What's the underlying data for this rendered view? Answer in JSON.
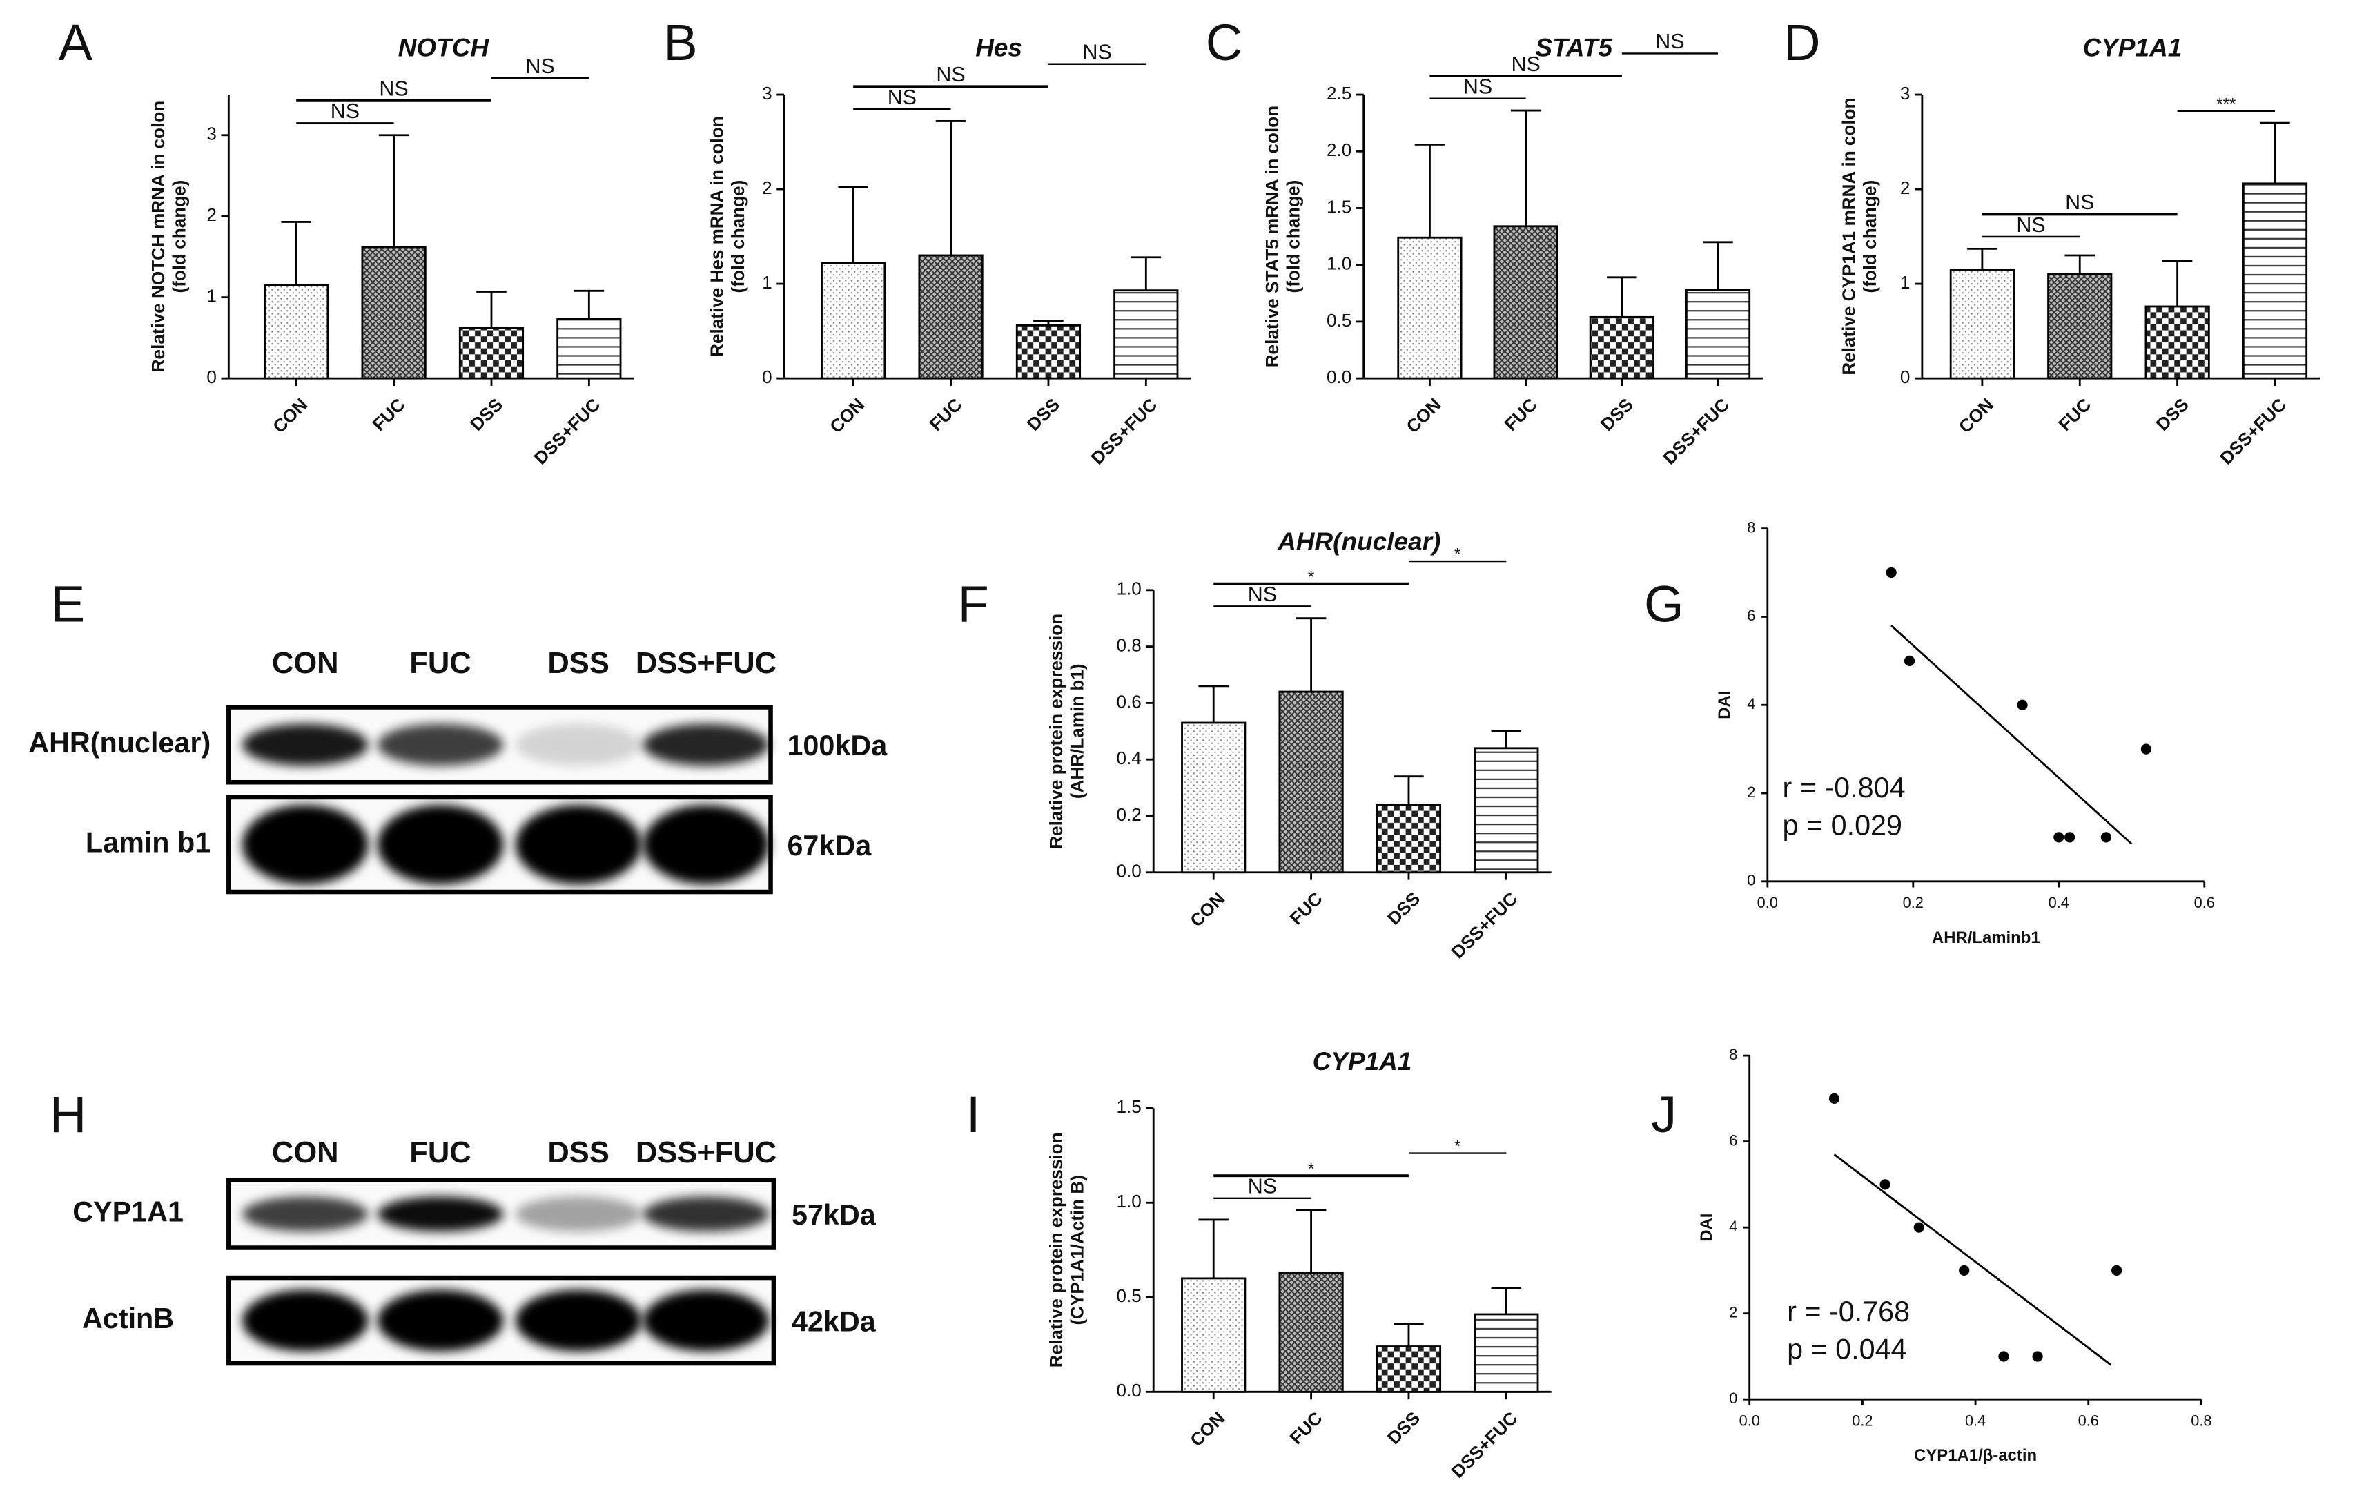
{
  "chart_data": [
    {
      "type": "bar",
      "panel": "A",
      "title": "NOTCH",
      "ylabel": [
        "Relative NOTCH mRNA in colon",
        "(fold change)"
      ],
      "categories": [
        "CON",
        "FUC",
        "DSS",
        "DSS+FUC"
      ],
      "values": [
        1.15,
        1.62,
        0.62,
        0.73
      ],
      "errors": [
        0.78,
        1.38,
        0.45,
        0.35
      ],
      "ylim": [
        0,
        3.5
      ],
      "yticks": [
        0,
        1,
        2,
        3
      ],
      "annotations": [
        {
          "text": "NS",
          "categories": [
            "CON",
            "FUC"
          ]
        },
        {
          "text": "NS",
          "categories": [
            "CON",
            "DSS"
          ]
        },
        {
          "text": "NS",
          "categories": [
            "DSS",
            "DSS+FUC"
          ]
        }
      ]
    },
    {
      "type": "bar",
      "panel": "B",
      "title": "Hes",
      "ylabel": [
        "Relative Hes mRNA in colon",
        "(fold change)"
      ],
      "categories": [
        "CON",
        "FUC",
        "DSS",
        "DSS+FUC"
      ],
      "values": [
        1.22,
        1.3,
        0.56,
        0.93
      ],
      "errors": [
        0.8,
        1.42,
        0.05,
        0.35
      ],
      "ylim": [
        0,
        3
      ],
      "yticks": [
        0,
        1,
        2,
        3
      ],
      "annotations": [
        {
          "text": "NS",
          "categories": [
            "CON",
            "FUC"
          ]
        },
        {
          "text": "NS",
          "categories": [
            "CON",
            "DSS"
          ]
        },
        {
          "text": "NS",
          "categories": [
            "DSS",
            "DSS+FUC"
          ]
        }
      ]
    },
    {
      "type": "bar",
      "panel": "C",
      "title": "STAT5",
      "ylabel": [
        "Relative STAT5 mRNA in colon",
        "(fold change)"
      ],
      "categories": [
        "CON",
        "FUC",
        "DSS",
        "DSS+FUC"
      ],
      "values": [
        1.24,
        1.34,
        0.54,
        0.78
      ],
      "errors": [
        0.82,
        1.02,
        0.35,
        0.42
      ],
      "ylim": [
        0,
        2.5
      ],
      "yticks": [
        {
          "value": 0,
          "label": "0.0"
        },
        0.5,
        {
          "value": 1,
          "label": "1.0"
        },
        1.5,
        {
          "value": 2,
          "label": "2.0"
        },
        2.5
      ],
      "annotations": [
        {
          "text": "NS",
          "categories": [
            "CON",
            "FUC"
          ]
        },
        {
          "text": "NS",
          "categories": [
            "CON",
            "DSS"
          ]
        },
        {
          "text": "NS",
          "categories": [
            "DSS",
            "DSS+FUC"
          ]
        }
      ]
    },
    {
      "type": "bar",
      "panel": "D",
      "title": "CYP1A1",
      "ylabel": [
        "Relative CYP1A1 mRNA in colon",
        "(fold change)"
      ],
      "categories": [
        "CON",
        "FUC",
        "DSS",
        "DSS+FUC"
      ],
      "values": [
        1.15,
        1.1,
        0.76,
        2.06
      ],
      "errors": [
        0.22,
        0.2,
        0.48,
        0.64
      ],
      "ylim": [
        0,
        3
      ],
      "yticks": [
        0,
        1,
        2,
        3
      ],
      "annotations": [
        {
          "text": "NS",
          "categories": [
            "CON",
            "FUC"
          ]
        },
        {
          "text": "NS",
          "categories": [
            "CON",
            "DSS"
          ]
        },
        {
          "text": "***",
          "categories": [
            "DSS",
            "DSS+FUC"
          ]
        }
      ]
    },
    {
      "type": "bar",
      "panel": "F",
      "title": "AHR(nuclear)",
      "ylabel": [
        "Relative protein expression",
        "(AHR/Lamin b1)"
      ],
      "categories": [
        "CON",
        "FUC",
        "DSS",
        "DSS+FUC"
      ],
      "values": [
        0.53,
        0.64,
        0.24,
        0.44
      ],
      "errors": [
        0.13,
        0.26,
        0.1,
        0.06
      ],
      "ylim": [
        0,
        1
      ],
      "yticks": [
        {
          "value": 0,
          "label": "0.0"
        },
        0.2,
        0.4,
        0.6,
        0.8,
        {
          "value": 1,
          "label": "1.0"
        }
      ],
      "annotations": [
        {
          "text": "NS",
          "categories": [
            "CON",
            "FUC"
          ]
        },
        {
          "text": "*",
          "categories": [
            "CON",
            "DSS"
          ]
        },
        {
          "text": "*",
          "categories": [
            "DSS",
            "DSS+FUC"
          ]
        }
      ]
    },
    {
      "type": "bar",
      "panel": "I",
      "title": "CYP1A1",
      "ylabel": [
        "Relative protein expression",
        "(CYP1A1/Actin B)"
      ],
      "categories": [
        "CON",
        "FUC",
        "DSS",
        "DSS+FUC"
      ],
      "values": [
        0.6,
        0.63,
        0.24,
        0.41
      ],
      "errors": [
        0.31,
        0.33,
        0.12,
        0.14
      ],
      "ylim": [
        0,
        1.5
      ],
      "yticks": [
        {
          "value": 0,
          "label": "0.0"
        },
        0.5,
        {
          "value": 1,
          "label": "1.0"
        },
        1.5
      ],
      "annotations": [
        {
          "text": "NS",
          "categories": [
            "CON",
            "FUC"
          ]
        },
        {
          "text": "*",
          "categories": [
            "CON",
            "DSS"
          ]
        },
        {
          "text": "*",
          "categories": [
            "DSS",
            "DSS+FUC"
          ]
        }
      ]
    },
    {
      "type": "scatter",
      "panel": "G",
      "xlabel": "AHR/Laminb1",
      "ylabel": "DAI",
      "x": [
        0.17,
        0.195,
        0.35,
        0.4,
        0.415,
        0.465,
        0.52
      ],
      "values": [
        7,
        5,
        4,
        1,
        1,
        1,
        3
      ],
      "fit": {
        "x": [
          0.17,
          0.5
        ],
        "y": [
          5.8,
          0.85
        ]
      },
      "stats": [
        "r = -0.804",
        "p = 0.029"
      ],
      "xlim": [
        0,
        0.6
      ],
      "xticks": [
        {
          "value": 0,
          "label": "0.0"
        },
        0.2,
        0.4,
        0.6
      ],
      "ylim": [
        0,
        8
      ],
      "yticks": [
        0,
        2,
        4,
        6,
        8
      ]
    },
    {
      "type": "scatter",
      "panel": "J",
      "xlabel": "CYP1A1/β-actin",
      "ylabel": "DAI",
      "x": [
        0.15,
        0.24,
        0.3,
        0.38,
        0.45,
        0.51,
        0.65
      ],
      "values": [
        7,
        5,
        4,
        3,
        1,
        1,
        3
      ],
      "fit": {
        "x": [
          0.15,
          0.64
        ],
        "y": [
          5.7,
          0.8
        ]
      },
      "stats": [
        "r = -0.768",
        "p = 0.044"
      ],
      "xlim": [
        0,
        0.8
      ],
      "xticks": [
        {
          "value": 0,
          "label": "0.0"
        },
        0.2,
        0.4,
        0.6,
        0.8
      ],
      "ylim": [
        0,
        8
      ],
      "yticks": [
        0,
        2,
        4,
        6,
        8
      ]
    }
  ],
  "blots": [
    {
      "panel": "E",
      "lanes": [
        "CON",
        "FUC",
        "DSS",
        "DSS+FUC"
      ],
      "rows": [
        {
          "label": "AHR(nuclear)",
          "size": "100kDa"
        },
        {
          "label": "Lamin b1",
          "size": "67kDa"
        }
      ]
    },
    {
      "panel": "H",
      "lanes": [
        "CON",
        "FUC",
        "DSS",
        "DSS+FUC"
      ],
      "rows": [
        {
          "label": "CYP1A1",
          "size": "57kDa"
        },
        {
          "label": "ActinB",
          "size": "42kDa"
        }
      ]
    }
  ]
}
